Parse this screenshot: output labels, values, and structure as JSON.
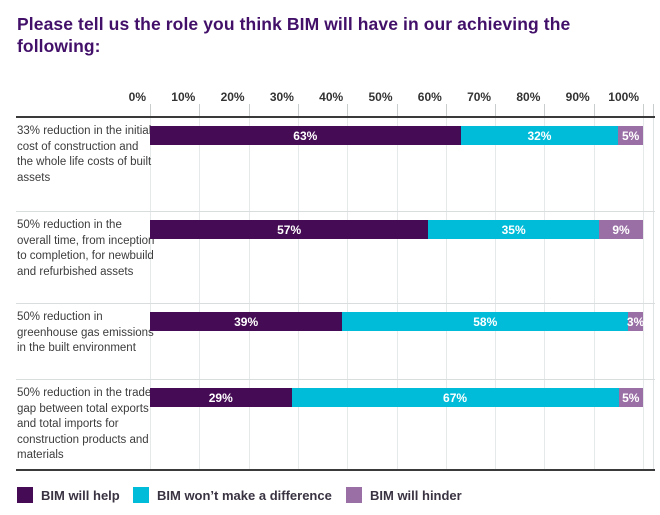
{
  "title": "Please tell us the role you think BIM will have in our achieving the following:",
  "chart_data": {
    "type": "bar",
    "orientation": "horizontal",
    "stacked": true,
    "title": "Please tell us the role you think BIM will have in our achieving the following:",
    "xlim": [
      0,
      100
    ],
    "axis_ticks": [
      "0%",
      "10%",
      "20%",
      "30%",
      "40%",
      "50%",
      "60%",
      "70%",
      "80%",
      "90%",
      "100%"
    ],
    "grid": true,
    "legend_position": "bottom",
    "value_label_suffix": "%",
    "categories": [
      "33% reduction in the initial cost of construction and the whole life costs of built assets",
      "50% reduction in the overall time, from inception to completion, for newbuild and refurbished assets",
      "50% reduction in greenhouse gas emissions in the built environment",
      "50% reduction in the trade gap between total exports and total imports for construction products and materials"
    ],
    "series": [
      {
        "name": "BIM will help",
        "color": "#450b54",
        "values": [
          63,
          57,
          39,
          29
        ]
      },
      {
        "name": "BIM won’t make a difference",
        "color": "#00bcd9",
        "values": [
          32,
          35,
          58,
          67
        ]
      },
      {
        "name": "BIM will hinder",
        "color": "#9a6fa5",
        "values": [
          5,
          9,
          3,
          5
        ]
      }
    ]
  },
  "colors": {
    "title_text": "#421069",
    "category_text": "#3c3c3c",
    "axis_text": "#333333",
    "legend_text": "#3a3342",
    "bar_help": "#450b54",
    "bar_no_difference": "#00bcd9",
    "bar_hinder": "#9a6fa5"
  }
}
